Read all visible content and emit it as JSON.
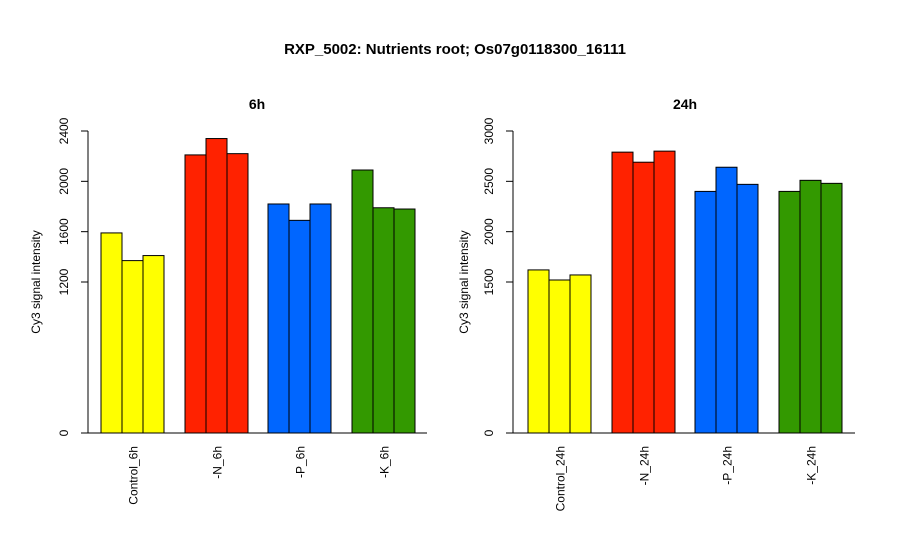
{
  "title": "RXP_5002: Nutrients root; Os07g0118300_16111",
  "chart_data": [
    {
      "type": "bar",
      "title": "6h",
      "ylabel": "Cy3 signal intensity",
      "ylim": [
        0,
        2400
      ],
      "yticks": [
        0,
        1200,
        1600,
        2000,
        2400
      ],
      "groups": [
        {
          "label": "Control_6h",
          "color": "#ffff00",
          "values": [
            1590,
            1370,
            1410
          ]
        },
        {
          "label": "-N_6h",
          "color": "#ff2200",
          "values": [
            2210,
            2340,
            2220
          ]
        },
        {
          "label": "-P_6h",
          "color": "#0066ff",
          "values": [
            1820,
            1690,
            1820
          ]
        },
        {
          "label": "-K_6h",
          "color": "#339900",
          "values": [
            2090,
            1790,
            1780
          ]
        }
      ]
    },
    {
      "type": "bar",
      "title": "24h",
      "ylabel": "Cy3 signal intensity",
      "ylim": [
        0,
        3000
      ],
      "yticks": [
        0,
        1500,
        2000,
        2500,
        3000
      ],
      "groups": [
        {
          "label": "Control_24h",
          "color": "#ffff00",
          "values": [
            1620,
            1520,
            1570
          ]
        },
        {
          "label": "-N_24h",
          "color": "#ff2200",
          "values": [
            2790,
            2690,
            2800
          ]
        },
        {
          "label": "-P_24h",
          "color": "#0066ff",
          "values": [
            2400,
            2640,
            2470
          ]
        },
        {
          "label": "-K_24h",
          "color": "#339900",
          "values": [
            2400,
            2510,
            2480
          ]
        }
      ]
    }
  ]
}
